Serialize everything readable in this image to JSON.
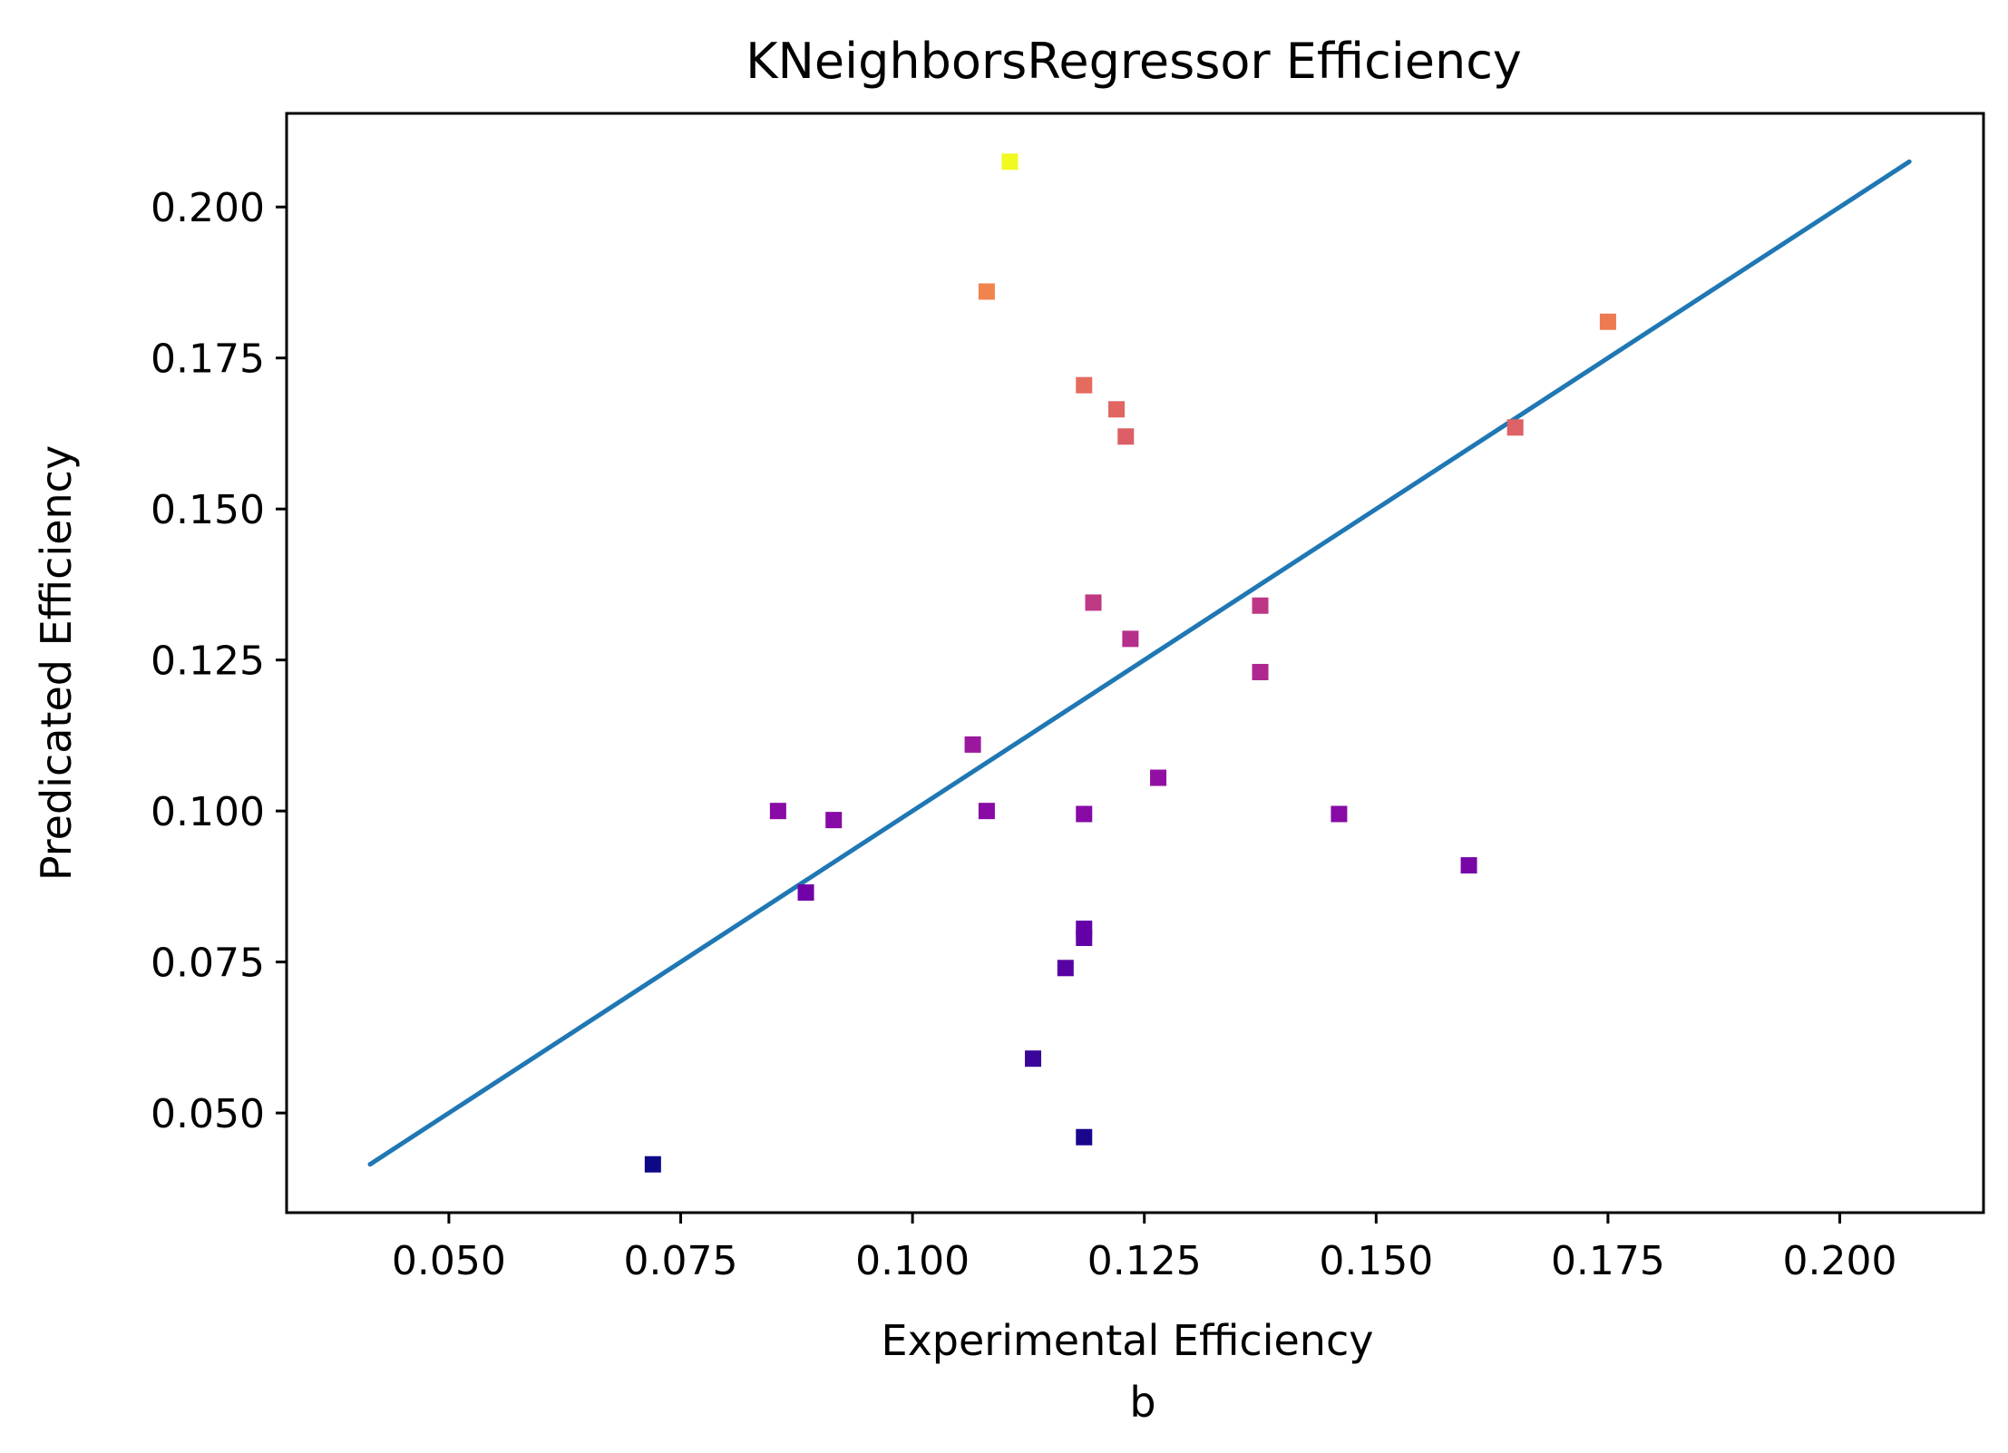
{
  "chart_data": {
    "type": "scatter",
    "title": "KNeighborsRegressor Efficiency",
    "xlabel": "Experimental Efficiency",
    "sublabel": "b",
    "ylabel": "Predicated Efficiency",
    "xlim": [
      0.0325,
      0.2155
    ],
    "ylim": [
      0.0335,
      0.2155
    ],
    "x_ticks": [
      0.05,
      0.075,
      0.1,
      0.125,
      0.15,
      0.175,
      0.2
    ],
    "x_tick_labels": [
      "0.050",
      "0.075",
      "0.100",
      "0.125",
      "0.150",
      "0.175",
      "0.200"
    ],
    "y_ticks": [
      0.05,
      0.075,
      0.1,
      0.125,
      0.15,
      0.175,
      0.2
    ],
    "y_tick_labels": [
      "0.050",
      "0.075",
      "0.100",
      "0.125",
      "0.150",
      "0.175",
      "0.200"
    ],
    "grid": false,
    "colormap": "plasma",
    "marker": "square",
    "reference_line": {
      "label": "identity",
      "x": [
        0.0415,
        0.2075
      ],
      "y": [
        0.0415,
        0.2075
      ],
      "color": "#1f77b4"
    },
    "points": [
      {
        "x": 0.072,
        "y": 0.0415
      },
      {
        "x": 0.1185,
        "y": 0.046
      },
      {
        "x": 0.113,
        "y": 0.059
      },
      {
        "x": 0.1165,
        "y": 0.074
      },
      {
        "x": 0.1185,
        "y": 0.079
      },
      {
        "x": 0.1185,
        "y": 0.0805
      },
      {
        "x": 0.0885,
        "y": 0.0865
      },
      {
        "x": 0.16,
        "y": 0.091
      },
      {
        "x": 0.0915,
        "y": 0.0985
      },
      {
        "x": 0.1185,
        "y": 0.0995
      },
      {
        "x": 0.146,
        "y": 0.0995
      },
      {
        "x": 0.0855,
        "y": 0.1
      },
      {
        "x": 0.108,
        "y": 0.1
      },
      {
        "x": 0.1265,
        "y": 0.1055
      },
      {
        "x": 0.1065,
        "y": 0.111
      },
      {
        "x": 0.1375,
        "y": 0.123
      },
      {
        "x": 0.1235,
        "y": 0.1285
      },
      {
        "x": 0.1375,
        "y": 0.134
      },
      {
        "x": 0.1195,
        "y": 0.1345
      },
      {
        "x": 0.123,
        "y": 0.162
      },
      {
        "x": 0.165,
        "y": 0.1635
      },
      {
        "x": 0.122,
        "y": 0.1665
      },
      {
        "x": 0.1185,
        "y": 0.1705
      },
      {
        "x": 0.175,
        "y": 0.181
      },
      {
        "x": 0.108,
        "y": 0.186
      },
      {
        "x": 0.1105,
        "y": 0.2075
      }
    ],
    "colors": {
      "axis": "#000000",
      "background": "#ffffff"
    }
  }
}
